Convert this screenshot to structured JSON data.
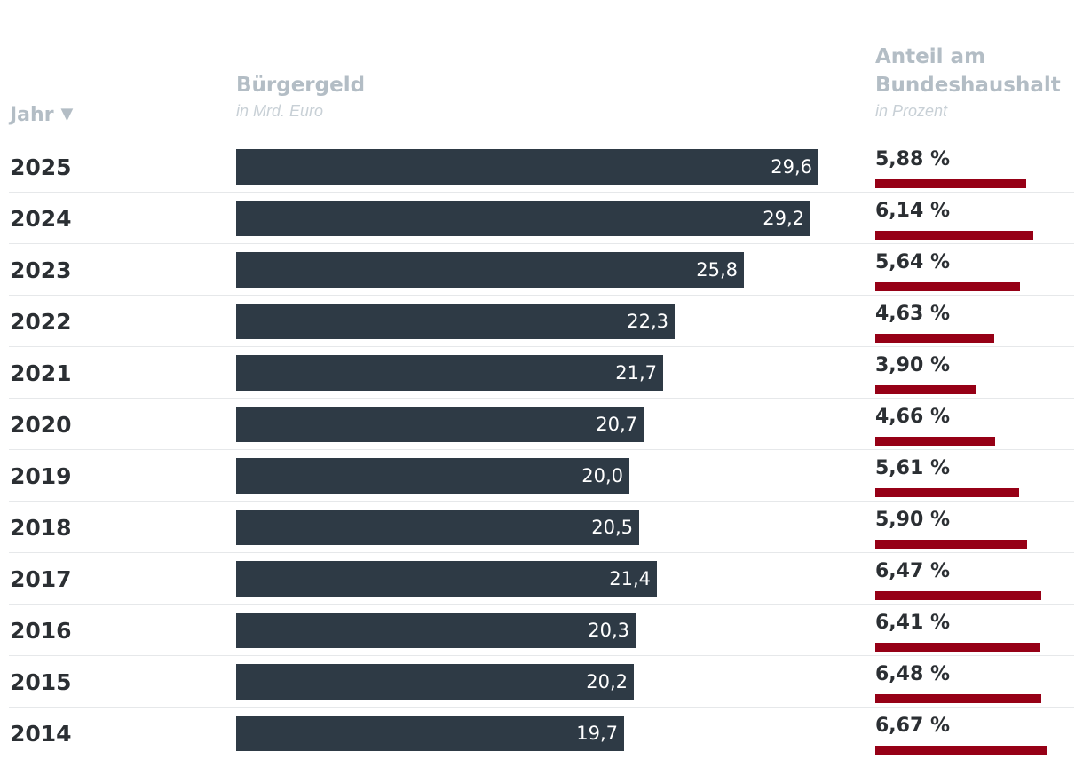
{
  "header": {
    "year_label": "Jahr",
    "sort_icon": "▼",
    "col1_title": "Bürgergeld",
    "col1_sub": "in Mrd. Euro",
    "col2_title_line1": "Anteil am",
    "col2_title_line2": "Bundeshaushalt",
    "col2_sub": "in Prozent"
  },
  "colors": {
    "bar": "#2e3a45",
    "pct_bar": "#960016",
    "header": "#b3bdc5"
  },
  "chart_data": {
    "type": "bar",
    "orientation": "horizontal",
    "categories": [
      "2025",
      "2024",
      "2023",
      "2022",
      "2021",
      "2020",
      "2019",
      "2018",
      "2017",
      "2016",
      "2015",
      "2014"
    ],
    "series": [
      {
        "name": "Bürgergeld",
        "unit": "in Mrd. Euro",
        "values": [
          29.6,
          29.2,
          25.8,
          22.3,
          21.7,
          20.7,
          20.0,
          20.5,
          21.4,
          20.3,
          20.2,
          19.7
        ],
        "labels": [
          "29,6",
          "29,2",
          "25,8",
          "22,3",
          "21,7",
          "20,7",
          "20,0",
          "20,5",
          "21,4",
          "20,3",
          "20,2",
          "19,7"
        ]
      },
      {
        "name": "Anteil am Bundeshaushalt",
        "unit": "in Prozent",
        "values": [
          5.88,
          6.14,
          5.64,
          4.63,
          3.9,
          4.66,
          5.61,
          5.9,
          6.47,
          6.41,
          6.48,
          6.67
        ],
        "labels": [
          "5,88 %",
          "6,14 %",
          "5,64 %",
          "4,63 %",
          "3,90 %",
          "4,66 %",
          "5,61 %",
          "5,90 %",
          "6,47 %",
          "6,41 %",
          "6,48 %",
          "6,67 %"
        ]
      }
    ]
  }
}
